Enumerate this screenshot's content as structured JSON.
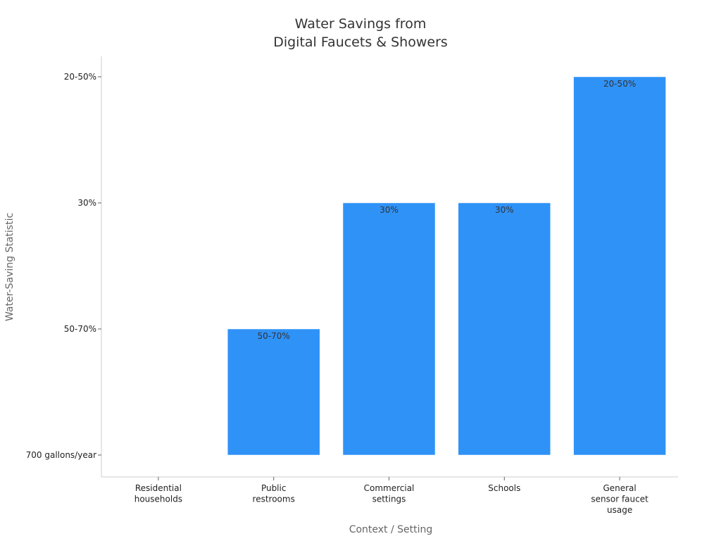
{
  "chart_data": {
    "type": "bar",
    "title": [
      "Water Savings from",
      "Digital Faucets & Showers"
    ],
    "xlabel": "Context / Setting",
    "ylabel": "Water-Saving Statistic",
    "categories": [
      [
        "Residential",
        "households"
      ],
      [
        "Public",
        "restrooms"
      ],
      [
        "Commercial",
        "settings"
      ],
      [
        "Schools"
      ],
      [
        "General",
        "sensor faucet",
        "usage"
      ]
    ],
    "y_categories": [
      "700 gallons/year",
      "50-70%",
      "30%",
      "20-50%"
    ],
    "values": [
      "700 gallons/year",
      "50-70%",
      "30%",
      "30%",
      "20-50%"
    ],
    "data_labels": [
      "",
      "50-70%",
      "30%",
      "30%",
      "20-50%"
    ],
    "bar_color": "#2f92f7",
    "grid": false,
    "legend": "none"
  }
}
